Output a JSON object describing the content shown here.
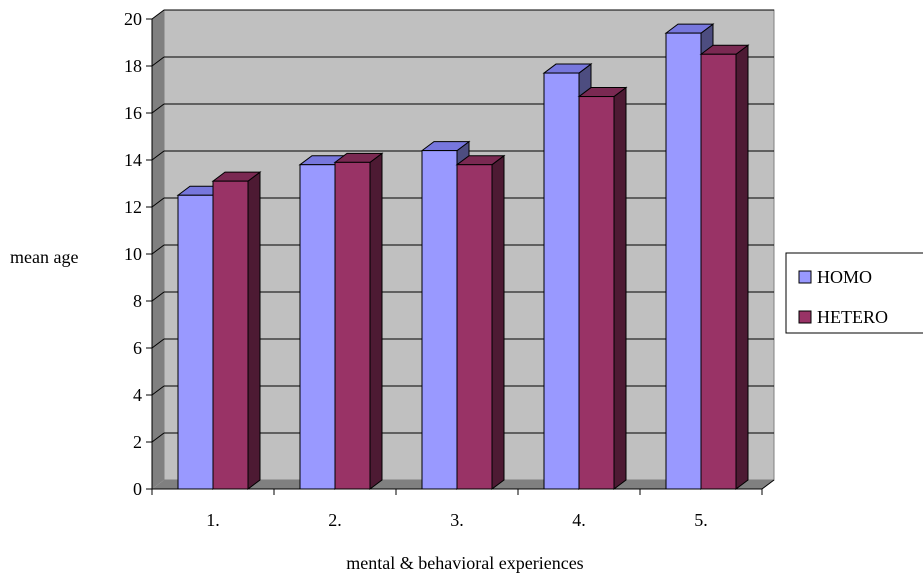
{
  "chart_data": {
    "type": "bar",
    "title": "",
    "xlabel": "mental & behavioral experiences",
    "ylabel": "mean age",
    "categories": [
      "1.",
      "2.",
      "3.",
      "4.",
      "5."
    ],
    "ylim": [
      0,
      20
    ],
    "yticks": [
      0,
      2,
      4,
      6,
      8,
      10,
      12,
      14,
      16,
      18,
      20
    ],
    "ytick_labels": [
      "0",
      "2",
      "4",
      "6",
      "8",
      "10",
      "12",
      "14",
      "16",
      "18",
      "20"
    ],
    "grid": true,
    "style": "3d-clustered-column",
    "legend_position": "right",
    "series": [
      {
        "name": "HOMO",
        "values": [
          12.5,
          13.8,
          14.4,
          17.7,
          19.4
        ]
      },
      {
        "name": "HETERO",
        "values": [
          13.1,
          13.9,
          13.8,
          16.7,
          18.5
        ]
      }
    ]
  },
  "colors": {
    "wall": "#c0c0c0",
    "floor": "#808080",
    "grid": "#000000",
    "homo_front": "#9999ff",
    "homo_top": "#7777dd",
    "homo_side": "#4d4d80",
    "hetero_front": "#993366",
    "hetero_top": "#7a2952",
    "hetero_side": "#4d1a33"
  }
}
